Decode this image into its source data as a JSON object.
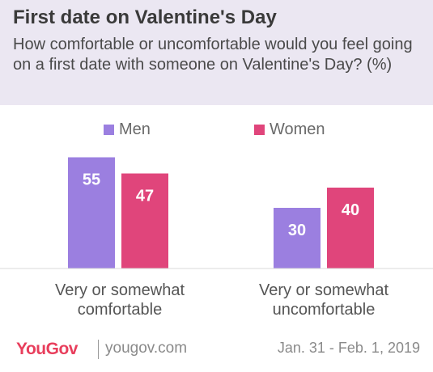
{
  "header": {
    "title": "First date on Valentine's Day",
    "subtitle": "How comfortable or uncomfortable would you feel going on a first date with someone on Valentine's Day? (%)"
  },
  "legend": [
    {
      "label": "Men",
      "color": "#9b7fe0"
    },
    {
      "label": "Women",
      "color": "#e0457b"
    }
  ],
  "chart_data": {
    "type": "bar",
    "categories": [
      "Very or somewhat comfortable",
      "Very or somewhat uncomfortable"
    ],
    "category_lines": [
      [
        "Very or somewhat",
        "comfortable"
      ],
      [
        "Very or somewhat",
        "uncomfortable"
      ]
    ],
    "series": [
      {
        "name": "Men",
        "color": "#9b7fe0",
        "values": [
          55,
          30
        ]
      },
      {
        "name": "Women",
        "color": "#e0457b",
        "values": [
          47,
          40
        ]
      }
    ],
    "ylim": [
      0,
      60
    ],
    "grid": false,
    "legend_position": "top",
    "data_labels": true
  },
  "footer": {
    "brand": "YouGov",
    "url": "yougov.com",
    "date": "Jan. 31 - Feb. 1, 2019"
  }
}
